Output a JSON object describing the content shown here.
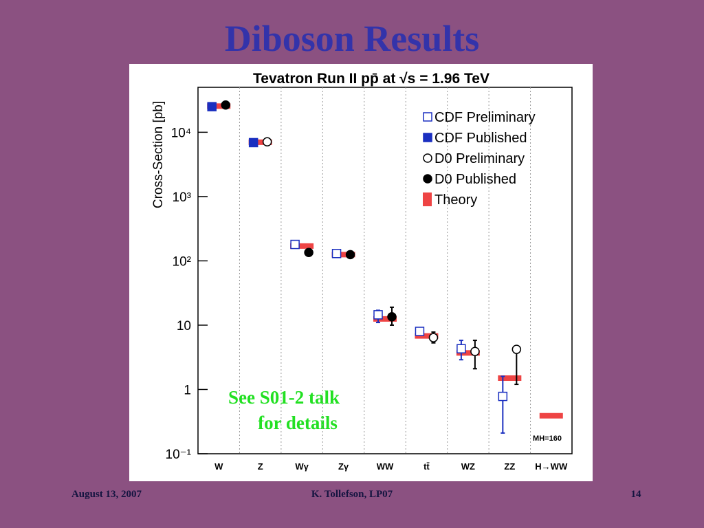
{
  "slide": {
    "title": "Diboson Results",
    "footer_left": "August 13, 2007",
    "footer_center": "K. Tollefson, LP07",
    "footer_right": "14"
  },
  "chart_data": {
    "type": "scatter",
    "title": "Tevatron Run II pp̄ at √s = 1.96 TeV",
    "y_label": "Cross-Section [pb]",
    "y_log": true,
    "legend": "upper right",
    "annotations": [
      "See S01-2 talk",
      "for details",
      "MH=160"
    ],
    "categories": [
      "W",
      "Z",
      "Wγ",
      "Zγ",
      "WW",
      "tt̄",
      "WZ",
      "ZZ",
      "H→WW"
    ],
    "ylim": [
      0.1,
      50000
    ],
    "yticks": [
      {
        "value": 0.1,
        "label": "10⁻¹"
      },
      1,
      10,
      {
        "value": 100,
        "label": "10²"
      },
      {
        "value": 1000,
        "label": "10³"
      },
      {
        "value": 10000,
        "label": "10⁴"
      }
    ],
    "series": [
      {
        "name": "CDF Preliminary",
        "color": "#1a2fc0",
        "marker": "square-open",
        "values": [
          null,
          null,
          180,
          130,
          14.5,
          8.0,
          4.3,
          0.78,
          null
        ],
        "lower": [
          null,
          null,
          160,
          118,
          11,
          7.0,
          2.9,
          0.21,
          null
        ],
        "upper": [
          null,
          null,
          200,
          145,
          17,
          9.0,
          5.8,
          1.6,
          null
        ]
      },
      {
        "name": "CDF Published",
        "color": "#1a2fc0",
        "marker": "square",
        "values": [
          25000,
          6900,
          null,
          null,
          null,
          null,
          null,
          null,
          null
        ],
        "lower": [
          24000,
          6500,
          null,
          null,
          null,
          null,
          null,
          null,
          null
        ],
        "upper": [
          27000,
          7300,
          null,
          null,
          null,
          null,
          null,
          null,
          null
        ]
      },
      {
        "name": "D0 Preliminary",
        "color": "#000000",
        "marker": "circle-open",
        "values": [
          null,
          7100,
          null,
          null,
          null,
          6.4,
          3.9,
          4.2,
          null
        ],
        "lower": [
          null,
          6900,
          null,
          null,
          null,
          5.3,
          2.1,
          1.2,
          null
        ],
        "upper": [
          null,
          7400,
          null,
          null,
          null,
          7.8,
          5.8,
          4.2,
          null
        ]
      },
      {
        "name": "D0 Published",
        "color": "#000000",
        "marker": "circle",
        "values": [
          26500,
          null,
          135,
          125,
          13.5,
          null,
          null,
          null,
          null
        ],
        "lower": [
          25000,
          null,
          120,
          115,
          10,
          null,
          null,
          null,
          null
        ],
        "upper": [
          28000,
          null,
          150,
          135,
          19,
          null,
          null,
          null,
          null
        ]
      },
      {
        "name": "Theory",
        "color": "#ee4444",
        "marker": "bar",
        "values": [
          25500,
          7000,
          170,
          125,
          12.5,
          6.8,
          3.7,
          1.5,
          0.39
        ]
      }
    ]
  }
}
